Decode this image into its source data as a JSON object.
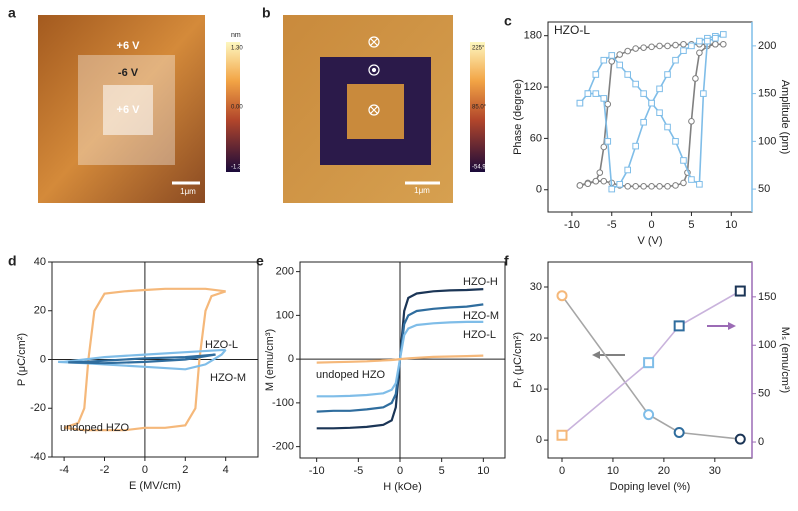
{
  "images": [
    {
      "panel": "a",
      "labels": [
        "+6 V",
        "-6 V",
        "+6 V"
      ],
      "colorbar_unit": "nm",
      "colorbar_ticks": [
        "1.30",
        "0.00",
        "-1.30"
      ],
      "scale_bar": "1μm"
    },
    {
      "panel": "b",
      "colorbar_ticks": [
        "225°",
        "85.0°",
        "-54.9°"
      ],
      "scale_bar": "1μm"
    }
  ],
  "chart_data": [
    {
      "type": "line",
      "panel": "c",
      "title": "HZO-L",
      "xlabel": "V (V)",
      "ylabel": "Phase (degree)",
      "y2label": "Amplitude (pm)",
      "y2color": "#7fbde8",
      "xlim": [
        -13,
        12.6
      ],
      "xticks": [
        -10,
        -5,
        0,
        5,
        10
      ],
      "ylim": [
        -26,
        196
      ],
      "yticks": [
        0,
        60,
        120,
        180
      ],
      "y2lim": [
        26,
        225
      ],
      "y2ticks": [
        50,
        100,
        150,
        200
      ],
      "series": [
        {
          "color": "#808080",
          "marker": "circle",
          "x": [
            -9,
            -8,
            -7,
            -6,
            -5,
            -4,
            -3,
            -2,
            -1,
            0,
            1,
            2,
            3,
            4,
            4.5,
            5,
            5.5,
            6,
            7,
            8,
            9,
            8,
            7,
            6,
            5,
            4,
            3,
            2,
            1,
            0,
            -1,
            -2,
            -3,
            -4,
            -5,
            -5.5,
            -6,
            -6.5,
            -7,
            -8,
            -9
          ],
          "values": [
            5,
            8,
            10,
            10,
            8,
            5,
            4,
            4,
            4,
            4,
            4,
            4,
            5,
            8,
            20,
            80,
            130,
            160,
            168,
            170,
            170,
            170,
            170,
            170,
            170,
            170,
            169,
            168,
            168,
            167,
            166,
            165,
            162,
            158,
            150,
            100,
            50,
            20,
            10,
            7,
            5
          ]
        },
        {
          "color": "#7fbde8",
          "marker": "square",
          "axis": "y2",
          "x": [
            -9,
            -8,
            -7,
            -6,
            -5.5,
            -5,
            -4,
            -3,
            -2,
            -1,
            0,
            1,
            2,
            3,
            4,
            5,
            6,
            7,
            8,
            9,
            8,
            7,
            6.5,
            6,
            5,
            4,
            3,
            2,
            1,
            0,
            -1,
            -2,
            -3,
            -4,
            -5,
            -6,
            -7,
            -8,
            -9
          ],
          "values": [
            140,
            150,
            150,
            145,
            100,
            50,
            55,
            70,
            95,
            120,
            140,
            155,
            170,
            185,
            195,
            200,
            205,
            208,
            210,
            212,
            208,
            205,
            150,
            55,
            60,
            80,
            100,
            115,
            130,
            140,
            150,
            160,
            170,
            180,
            190,
            185,
            170,
            150,
            140
          ]
        }
      ]
    },
    {
      "type": "line",
      "panel": "d",
      "xlabel": "E (MV/cm)",
      "ylabel": "P (μC/cm²)",
      "zero_lines": true,
      "xlim": [
        -4.6,
        5.6
      ],
      "xticks": [
        -4,
        -2,
        0,
        2,
        4
      ],
      "ylim": [
        -40,
        40
      ],
      "yticks": [
        -40,
        -20,
        0,
        20,
        40
      ],
      "series": [
        {
          "name": "undoped HZO",
          "color": "#f5b87a",
          "x": [
            4,
            3,
            2,
            1,
            0,
            -1,
            -2,
            -2.5,
            -2.8,
            -3,
            -3.3,
            -4,
            -3,
            -2,
            -1,
            0,
            1,
            2,
            2.5,
            2.7,
            3,
            3.3,
            4
          ],
          "values": [
            28,
            29,
            29,
            29,
            28.5,
            28,
            27,
            20,
            0,
            -20,
            -26,
            -28,
            -29,
            -29,
            -29,
            -28,
            -28,
            -27,
            -20,
            0,
            20,
            26,
            28
          ]
        },
        {
          "name": "HZO-L",
          "color": "#7fbde8",
          "x": [
            4,
            2,
            0,
            -2,
            -3,
            -4,
            -4.3,
            -3,
            -2,
            0,
            2,
            3,
            3.8,
            4
          ],
          "values": [
            4,
            3,
            2,
            1,
            0,
            -1,
            -1,
            -1.5,
            -2,
            -3,
            -4,
            -2,
            2,
            4
          ]
        },
        {
          "name": "HZO-M",
          "color": "#2f6d9e",
          "x": [
            3.5,
            2,
            0,
            -2,
            -3,
            -3.8,
            -2,
            0,
            2,
            3.5
          ],
          "values": [
            2,
            1,
            0.5,
            -0.5,
            -1,
            -1.2,
            -1.5,
            -1,
            0,
            2
          ]
        }
      ]
    },
    {
      "type": "line",
      "panel": "e",
      "xlabel": "H (kOe)",
      "ylabel": "M (emu/cm³)",
      "zero_lines": true,
      "xlim": [
        -12,
        12.6
      ],
      "xticks": [
        -10,
        -5,
        0,
        5,
        10
      ],
      "ylim": [
        -226,
        222
      ],
      "yticks": [
        -200,
        -100,
        0,
        100,
        200
      ],
      "x": [
        -10,
        -8,
        -6,
        -4,
        -2,
        -1,
        -0.5,
        0,
        0.5,
        1,
        2,
        4,
        6,
        8,
        10
      ],
      "series": [
        {
          "name": "HZO-H",
          "color": "#1b3556",
          "values": [
            -158,
            -158,
            -157,
            -155,
            -150,
            -140,
            -110,
            0,
            110,
            140,
            150,
            155,
            157,
            158,
            160
          ]
        },
        {
          "name": "HZO-M",
          "color": "#2f6d9e",
          "values": [
            -120,
            -118,
            -118,
            -115,
            -110,
            -100,
            -80,
            0,
            80,
            100,
            110,
            115,
            118,
            120,
            125
          ]
        },
        {
          "name": "HZO-L",
          "color": "#7fbde8",
          "values": [
            -85,
            -85,
            -84,
            -82,
            -78,
            -70,
            -55,
            0,
            55,
            70,
            78,
            82,
            84,
            85,
            85
          ]
        },
        {
          "name": "undoped HZO",
          "color": "#f5b87a",
          "values": [
            -8,
            -7,
            -6,
            -5,
            -3,
            -2,
            -1,
            0,
            1,
            2,
            3,
            5,
            6,
            7,
            8
          ]
        }
      ]
    },
    {
      "type": "line",
      "panel": "f",
      "xlabel": "Doping level  (%)",
      "ylabel": "Pᵣ (μC/cm²)",
      "y2label": "Mₛ (emu/cm³)",
      "y2color": "#9b6bb5",
      "xlim": [
        -2.75,
        37.3
      ],
      "xticks": [
        0,
        10,
        20,
        30
      ],
      "ylim": [
        -3.5,
        34.9
      ],
      "yticks": [
        0,
        10,
        20,
        30
      ],
      "y2lim": [
        -16.5,
        186
      ],
      "y2ticks": [
        0,
        50,
        100,
        150
      ],
      "x": [
        0,
        17,
        23,
        35
      ],
      "series": [
        {
          "color": "#a6a6a6",
          "marker": "circle",
          "marker_colors": [
            "#f5b87a",
            "#7fbde8",
            "#2f6d9e",
            "#1b3556"
          ],
          "values": [
            28.3,
            5,
            1.5,
            0.2
          ]
        },
        {
          "color": "#c9b3dc",
          "marker": "square",
          "axis": "y2",
          "marker_colors": [
            "#f5b87a",
            "#7fbde8",
            "#2f6d9e",
            "#1b3556"
          ],
          "values": [
            7,
            82,
            120,
            156
          ]
        }
      ]
    }
  ]
}
